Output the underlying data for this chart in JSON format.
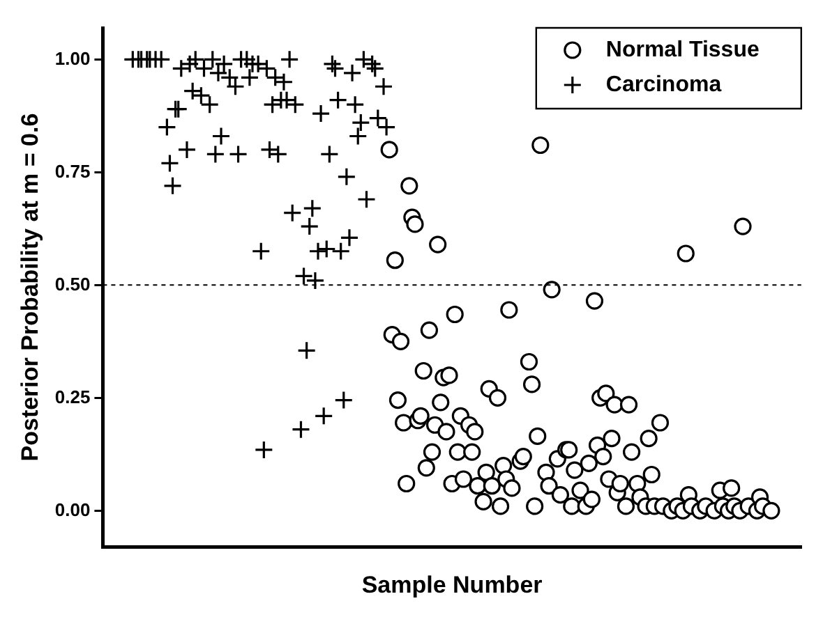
{
  "chart_data": {
    "type": "scatter",
    "xlabel": "Sample Number",
    "ylabel": "Posterior Probability at m = 0.6",
    "categories": [
      null,
      null,
      null,
      null,
      null,
      null,
      null,
      null,
      null,
      null,
      null,
      null,
      null,
      null,
      null,
      null,
      null,
      null,
      null,
      null,
      null,
      null,
      null,
      null,
      null,
      null,
      null,
      null,
      null,
      null,
      null,
      null,
      null,
      null,
      null,
      null,
      null,
      null,
      null,
      null,
      null,
      null,
      null,
      null,
      null,
      null,
      null,
      null,
      null,
      null,
      null,
      null,
      null,
      null,
      null,
      null,
      null,
      null,
      null,
      null,
      null,
      null,
      null,
      null,
      null,
      null,
      null,
      null,
      null,
      null,
      null,
      null,
      null,
      null,
      null,
      null,
      null,
      null,
      null,
      null,
      null,
      null,
      null,
      null,
      null,
      null,
      null,
      null,
      null,
      null,
      null,
      null,
      null,
      null,
      null,
      null,
      null,
      null,
      null,
      null,
      null,
      null,
      null,
      null,
      null,
      null,
      null,
      null,
      null,
      null,
      null,
      null,
      null,
      null,
      null,
      null,
      null,
      null,
      null,
      null,
      null,
      null,
      null,
      null,
      null,
      null,
      null,
      null,
      null,
      null,
      null,
      null,
      null,
      null,
      null,
      null,
      null,
      null,
      null,
      null,
      null,
      null,
      null,
      null,
      null,
      null,
      null,
      null,
      null,
      null,
      null,
      null,
      null,
      null,
      null,
      null,
      null,
      null,
      null,
      null,
      null,
      null,
      null,
      null,
      null,
      null,
      null,
      null,
      null,
      null,
      null,
      null,
      null,
      null,
      null,
      null,
      null,
      null,
      null,
      null,
      null,
      null,
      null,
      null,
      null,
      null,
      null,
      null,
      null,
      null,
      null,
      null,
      null,
      null,
      null,
      null,
      null,
      null,
      null,
      null,
      null,
      null,
      null,
      null,
      null,
      null,
      null,
      null,
      null,
      null,
      null,
      null,
      null,
      null,
      null,
      null,
      null,
      null,
      null,
      null,
      null,
      null,
      null,
      null,
      null,
      null,
      null,
      null,
      null,
      null,
      null,
      null,
      null,
      null,
      null,
      null,
      null,
      null,
      null,
      null,
      null,
      null,
      null,
      null,
      null
    ],
    "ylim": [
      -0.08,
      1.07
    ],
    "yticks": [
      {
        "value": 0,
        "label": "0.00"
      },
      {
        "value": 0.25,
        "label": "0.25"
      },
      {
        "value": 0.5,
        "label": "0.50"
      },
      {
        "value": 0.75,
        "label": "0.75"
      },
      {
        "value": 1,
        "label": "1.00"
      }
    ],
    "tick_labels": "y",
    "legend": "top right",
    "ref_lines": [
      {
        "axis": "y",
        "value": 0.5,
        "line_style": "dashed",
        "color": "#000000"
      }
    ],
    "series": [
      {
        "name": "Normal Tissue",
        "color": "#000000",
        "marker": "circle",
        "values": [
          null,
          null,
          null,
          null,
          null,
          null,
          null,
          null,
          null,
          null,
          null,
          null,
          null,
          null,
          null,
          null,
          null,
          null,
          null,
          null,
          null,
          null,
          null,
          null,
          null,
          null,
          null,
          null,
          null,
          null,
          null,
          null,
          null,
          null,
          null,
          null,
          null,
          null,
          null,
          null,
          null,
          null,
          null,
          null,
          null,
          null,
          null,
          null,
          null,
          null,
          null,
          null,
          null,
          null,
          null,
          null,
          null,
          null,
          null,
          null,
          null,
          null,
          null,
          null,
          null,
          null,
          null,
          null,
          null,
          null,
          null,
          null,
          null,
          null,
          null,
          null,
          null,
          null,
          null,
          null,
          null,
          null,
          null,
          null,
          null,
          null,
          null,
          null,
          null,
          null,
          null,
          null,
          null,
          null,
          null,
          null,
          null,
          null,
          null,
          null,
          0.8,
          0.39,
          0.555,
          0.245,
          0.375,
          0.195,
          0.06,
          0.72,
          0.65,
          0.635,
          0.2,
          0.21,
          0.31,
          0.095,
          0.4,
          0.13,
          0.19,
          0.59,
          0.24,
          0.295,
          0.175,
          0.3,
          0.06,
          0.435,
          0.13,
          0.21,
          0.07,
          null,
          0.19,
          0.13,
          0.175,
          0.055,
          null,
          0.02,
          0.085,
          0.27,
          0.055,
          null,
          0.25,
          0.01,
          0.1,
          0.07,
          0.445,
          0.05,
          null,
          null,
          0.11,
          0.12,
          null,
          0.33,
          0.28,
          0.01,
          0.165,
          0.81,
          null,
          0.085,
          0.055,
          0.49,
          null,
          0.115,
          0.035,
          null,
          0.135,
          0.135,
          0.01,
          0.09,
          null,
          0.045,
          null,
          0.01,
          0.105,
          0.025,
          0.465,
          0.145,
          0.25,
          0.12,
          0.26,
          0.07,
          0.16,
          0.235,
          0.04,
          0.06,
          null,
          0.01,
          0.235,
          0.13,
          null,
          0.06,
          0.03,
          null,
          0.01,
          0.16,
          0.08,
          0.01,
          null,
          0.195,
          0.01,
          null,
          null,
          0.0,
          null,
          0.01,
          null,
          0.0,
          0.57,
          0.035,
          0.01,
          null,
          null,
          0.0,
          null,
          0.01,
          null,
          null,
          0.0,
          null,
          0.045,
          0.01,
          null,
          0.0,
          0.05,
          0.01,
          null,
          0.0,
          0.63,
          null,
          0.01,
          null,
          null,
          0.0,
          0.03,
          0.01,
          null,
          null,
          0.0,
          null,
          null,
          null,
          null,
          null,
          null,
          null,
          null,
          null,
          null
        ]
      },
      {
        "name": "Carcinoma",
        "color": "#000000",
        "marker": "cross",
        "values": [
          null,
          null,
          null,
          null,
          null,
          null,
          null,
          null,
          null,
          null,
          1.0,
          null,
          1.0,
          1.0,
          null,
          1.0,
          1.0,
          null,
          1.0,
          null,
          1.0,
          null,
          0.85,
          0.77,
          0.72,
          0.89,
          0.89,
          0.98,
          null,
          0.8,
          0.99,
          0.93,
          1.0,
          null,
          0.92,
          0.98,
          null,
          0.9,
          1.0,
          0.79,
          0.97,
          0.83,
          0.99,
          null,
          0.96,
          null,
          0.94,
          0.79,
          1.0,
          null,
          1.0,
          0.96,
          0.99,
          null,
          0.99,
          0.575,
          0.135,
          0.98,
          0.8,
          0.9,
          0.96,
          0.79,
          0.91,
          0.95,
          0.91,
          1.0,
          0.66,
          0.9,
          null,
          0.18,
          0.52,
          0.355,
          0.63,
          0.67,
          0.51,
          0.575,
          0.88,
          0.21,
          0.58,
          0.79,
          0.99,
          0.98,
          0.91,
          0.575,
          0.245,
          0.74,
          0.605,
          0.97,
          0.9,
          0.83,
          0.86,
          1.0,
          0.69,
          null,
          0.99,
          0.98,
          0.87,
          null,
          0.94,
          0.85,
          null,
          null,
          null,
          null,
          null,
          null,
          null,
          null,
          null,
          null,
          null,
          null,
          null,
          null,
          null,
          null,
          null,
          null,
          null,
          null,
          null,
          null,
          null,
          null,
          null,
          null,
          null,
          null,
          null,
          null,
          null,
          null,
          null,
          null,
          null,
          null,
          null,
          null,
          null,
          null,
          null,
          null,
          null,
          null,
          null,
          null,
          null,
          null,
          null,
          null,
          null,
          null,
          null,
          null,
          null,
          null,
          null,
          null,
          null,
          null,
          null,
          null,
          null,
          null,
          null,
          null,
          null,
          null,
          null,
          null,
          null,
          null,
          null,
          null,
          null,
          null,
          null,
          null,
          null,
          null,
          null,
          null,
          null,
          null,
          null,
          null,
          null,
          null,
          null,
          null,
          null,
          null,
          null,
          null,
          null,
          null,
          null,
          null,
          null,
          null,
          null,
          null,
          null,
          null,
          null,
          null,
          null,
          null,
          null,
          null,
          null,
          null,
          null,
          null,
          null,
          null,
          null,
          null,
          null,
          null,
          null,
          null,
          null,
          null,
          null,
          null,
          null,
          null,
          null,
          null,
          null,
          null,
          null,
          null,
          null,
          null,
          null,
          null,
          null,
          null,
          null,
          null,
          null,
          null,
          null
        ]
      }
    ]
  }
}
